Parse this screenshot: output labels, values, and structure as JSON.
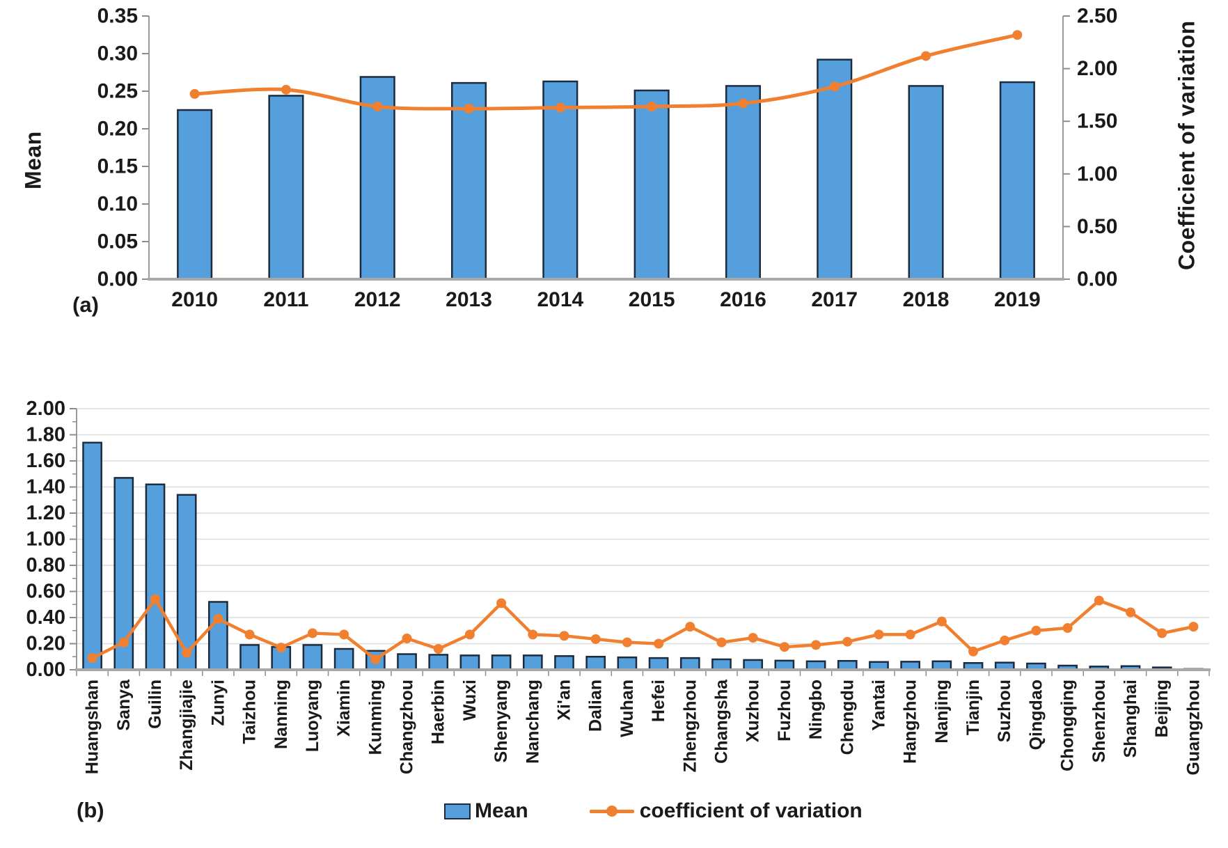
{
  "figure": {
    "panel_a": {
      "label": "(a)"
    },
    "panel_b": {
      "label": "(b)"
    },
    "legend": {
      "mean_label": "Mean",
      "cv_label": "coefficient of variation"
    }
  },
  "colors": {
    "bar_fill": "#55A0DC",
    "bar_border": "#1C2B3E",
    "line": "#F0802F",
    "axis_line": "#9B9B9B",
    "baseline": "#A8A8A8",
    "tick": "#8C8C8C",
    "grid": "#DCDCDC",
    "text": "#1A1A1A"
  },
  "chart_data": [
    {
      "id": "panel_a",
      "type": "bar+line",
      "categories": [
        "2010",
        "2011",
        "2012",
        "2013",
        "2014",
        "2015",
        "2016",
        "2017",
        "2018",
        "2019"
      ],
      "series": [
        {
          "name": "Mean",
          "type": "bar",
          "axis": "left",
          "values": [
            0.225,
            0.244,
            0.269,
            0.261,
            0.263,
            0.251,
            0.257,
            0.292,
            0.257,
            0.262
          ]
        },
        {
          "name": "coefficient of variation",
          "type": "line",
          "axis": "right",
          "values": [
            1.76,
            1.8,
            1.64,
            1.62,
            1.63,
            1.64,
            1.67,
            1.83,
            2.12,
            2.32
          ]
        }
      ],
      "left_axis": {
        "label": "Mean",
        "min": 0,
        "max": 0.35,
        "step": 0.05,
        "tick_labels": [
          "0.00",
          "0.05",
          "0.10",
          "0.15",
          "0.20",
          "0.25",
          "0.30",
          "0.35"
        ]
      },
      "right_axis": {
        "label": "Coefficient of variation",
        "min": 0,
        "max": 2.5,
        "step": 0.5,
        "tick_labels": [
          "0.00",
          "0.50",
          "1.00",
          "1.50",
          "2.00",
          "2.50"
        ]
      },
      "grid": false,
      "legend_position": "none"
    },
    {
      "id": "panel_b",
      "type": "bar+line",
      "categories": [
        "Huangshan",
        "Sanya",
        "Guilin",
        "Zhangjiajie",
        "Zunyi",
        "Taizhou",
        "Nanning",
        "Luoyang",
        "Xiamin",
        "Kunming",
        "Changzhou",
        "Haerbin",
        "Wuxi",
        "Shenyang",
        "Nanchang",
        "Xi'an",
        "Dalian",
        "Wuhan",
        "Hefei",
        "Zhengzhou",
        "Changsha",
        "Xuzhou",
        "Fuzhou",
        "Ningbo",
        "Chengdu",
        "Yantai",
        "Hangzhou",
        "Nanjing",
        "Tianjin",
        "Suzhou",
        "Qingdao",
        "Chongqing",
        "Shenzhou",
        "Shanghai",
        "Beijing",
        "Guangzhou"
      ],
      "series": [
        {
          "name": "Mean",
          "type": "bar",
          "axis": "left",
          "values": [
            1.74,
            1.47,
            1.42,
            1.34,
            0.52,
            0.19,
            0.175,
            0.19,
            0.16,
            0.145,
            0.12,
            0.115,
            0.11,
            0.11,
            0.11,
            0.105,
            0.1,
            0.095,
            0.09,
            0.09,
            0.08,
            0.075,
            0.07,
            0.065,
            0.068,
            0.06,
            0.062,
            0.065,
            0.052,
            0.055,
            0.048,
            0.032,
            0.025,
            0.028,
            0.018,
            0.006
          ]
        },
        {
          "name": "coefficient of variation",
          "type": "line",
          "axis": "left",
          "values": [
            0.09,
            0.21,
            0.54,
            0.13,
            0.39,
            0.27,
            0.17,
            0.28,
            0.27,
            0.08,
            0.24,
            0.16,
            0.27,
            0.51,
            0.27,
            0.26,
            0.235,
            0.21,
            0.2,
            0.33,
            0.21,
            0.245,
            0.175,
            0.19,
            0.215,
            0.27,
            0.27,
            0.37,
            0.14,
            0.225,
            0.3,
            0.32,
            0.53,
            0.44,
            0.28,
            0.33
          ]
        }
      ],
      "left_axis": {
        "label": "",
        "min": 0,
        "max": 2.0,
        "step": 0.2,
        "tick_labels": [
          "0.00",
          "0.20",
          "0.40",
          "0.60",
          "0.80",
          "1.00",
          "1.20",
          "1.40",
          "1.60",
          "1.80",
          "2.00"
        ]
      },
      "grid": true,
      "legend_position": "bottom"
    }
  ]
}
